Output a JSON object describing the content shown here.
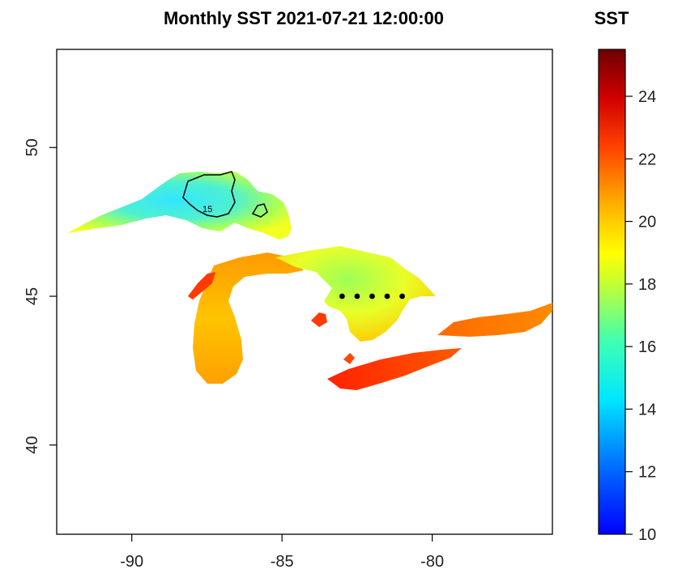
{
  "map": {
    "title": "Monthly SST 2021-07-21 12:00:00",
    "x_axis": {
      "range": [
        -92.5,
        -76.0
      ],
      "ticks": [
        -90,
        -85,
        -80
      ]
    },
    "y_axis": {
      "range": [
        37.0,
        53.3
      ],
      "ticks": [
        40,
        45,
        50
      ]
    },
    "highlight_points": [
      {
        "lon": -83.0,
        "lat": 45.0
      },
      {
        "lon": -82.5,
        "lat": 45.0
      },
      {
        "lon": -82.0,
        "lat": 45.0
      },
      {
        "lon": -81.5,
        "lat": 45.0
      },
      {
        "lon": -81.0,
        "lat": 45.0
      }
    ],
    "contour_note": "15"
  },
  "legend": {
    "title": "SST",
    "min": 10,
    "max": 25.5,
    "ticks": [
      10,
      12,
      14,
      16,
      18,
      20,
      22,
      24
    ],
    "colors": [
      "#0000ff",
      "#00a0ff",
      "#00ffff",
      "#80ff80",
      "#ffff00",
      "#ffa000",
      "#ff3000",
      "#b00000",
      "#6e0000"
    ]
  }
}
